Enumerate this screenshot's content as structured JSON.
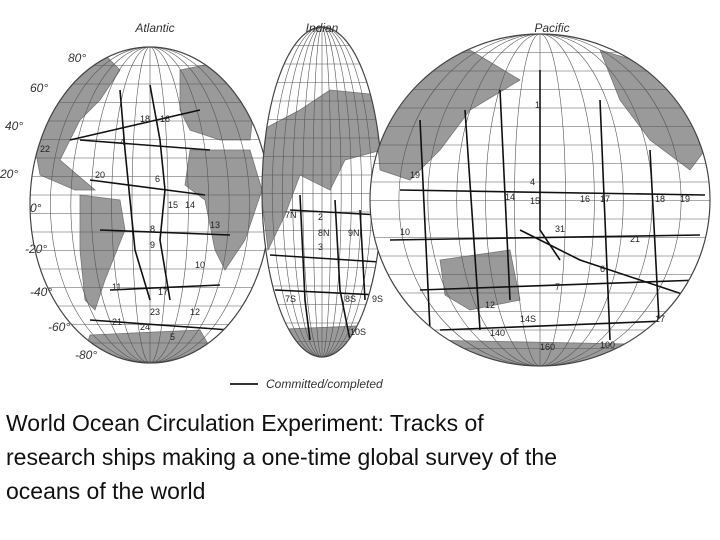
{
  "map": {
    "basins": [
      "Atlantic",
      "Indian",
      "Pacific"
    ],
    "latitude_labels": [
      "80°",
      "60°",
      "40°",
      "20°",
      "0°",
      "-20°",
      "-40°",
      "-60°",
      "-80°"
    ],
    "track_labels": [
      "18",
      "16",
      "22",
      "4",
      "20",
      "6",
      "15",
      "14",
      "13",
      "8",
      "9",
      "10",
      "11",
      "17",
      "23",
      "21",
      "24",
      "12",
      "5",
      "7N",
      "2",
      "8N",
      "9N",
      "3",
      "7S",
      "8S",
      "9S",
      "10S",
      "19",
      "10",
      "1",
      "4",
      "15",
      "16",
      "17",
      "18",
      "19",
      "14",
      "21",
      "6",
      "7",
      "31",
      "12",
      "14S",
      "17",
      "140",
      "160",
      "100"
    ],
    "legend": "Committed/completed"
  },
  "caption": [
    "World Ocean Circulation Experiment: Tracks of",
    "research ships making a one-time global survey of the",
    "oceans of the world"
  ]
}
